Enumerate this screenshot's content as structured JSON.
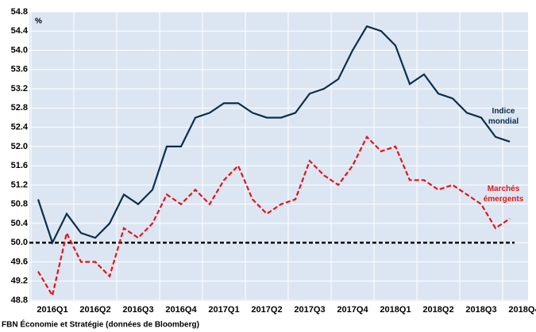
{
  "chart_data": {
    "type": "line",
    "unit_label": "%",
    "source": "FBN Économie et Stratégie (données de Bloomberg)",
    "categories": [
      null,
      "2016Q1",
      null,
      null,
      "2016Q2",
      null,
      null,
      "2016Q3",
      null,
      null,
      "2016Q4",
      null,
      null,
      "2017Q1",
      null,
      null,
      "2017Q2",
      null,
      null,
      "2017Q3",
      null,
      null,
      "2017Q4",
      null,
      null,
      "2018Q1",
      null,
      null,
      "2018Q2",
      null,
      null,
      "2018Q3",
      null,
      null,
      "2018Q4"
    ],
    "series": [
      {
        "name": "Indice mondial",
        "color": "#0d2d4a",
        "dash": false,
        "values": [
          50.9,
          50.0,
          50.6,
          50.2,
          50.1,
          50.4,
          51.0,
          50.8,
          51.1,
          52.0,
          52.0,
          52.6,
          52.7,
          52.9,
          52.9,
          52.7,
          52.6,
          52.6,
          52.7,
          53.1,
          53.2,
          53.4,
          54.0,
          54.5,
          54.4,
          54.1,
          53.3,
          53.5,
          53.1,
          53.0,
          52.7,
          52.6,
          52.2,
          52.1,
          null
        ]
      },
      {
        "name": "Marchés émergents",
        "color": "#e0161b",
        "dash": true,
        "values": [
          49.4,
          48.9,
          50.2,
          49.6,
          49.6,
          49.3,
          50.3,
          50.1,
          50.4,
          51.0,
          50.8,
          51.1,
          50.8,
          51.3,
          51.6,
          50.9,
          50.6,
          50.8,
          50.9,
          51.7,
          51.4,
          51.2,
          51.6,
          52.2,
          51.9,
          52.0,
          51.3,
          51.3,
          51.1,
          51.2,
          51.0,
          50.8,
          50.3,
          50.5,
          null
        ]
      }
    ],
    "reference_line": 50,
    "ylim": [
      48.8,
      54.8
    ],
    "yticks": [
      48.8,
      49.2,
      49.6,
      {
        "value": 50,
        "label": "50.0"
      },
      50.4,
      50.8,
      51.2,
      51.6,
      {
        "value": 52,
        "label": "52.0"
      },
      52.4,
      52.8,
      53.2,
      53.6,
      {
        "value": 54,
        "label": "54.0"
      },
      54.4,
      54.8
    ],
    "grid": true
  }
}
